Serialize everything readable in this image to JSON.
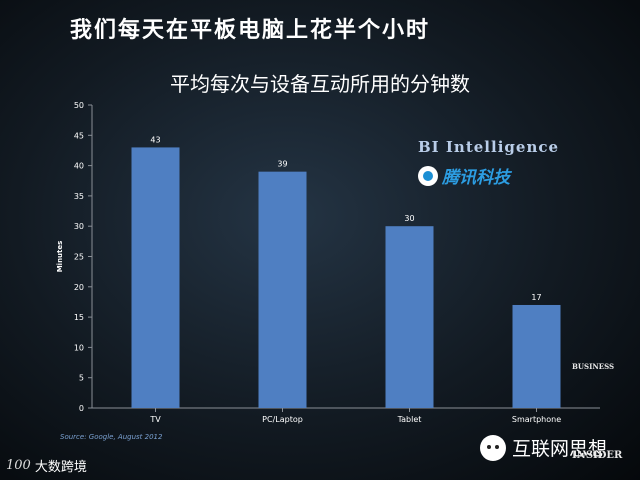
{
  "headline": "我们每天在平板电脑上花半个小时",
  "chart_data": {
    "type": "bar",
    "title": "平均每次与设备互动所用的分钟数",
    "ylabel": "Minutes",
    "xlabel": "",
    "categories": [
      "TV",
      "PC/Laptop",
      "Tablet",
      "Smartphone"
    ],
    "values": [
      43,
      39,
      30,
      17
    ],
    "ylim": [
      0,
      50
    ],
    "yticks": [
      0,
      5,
      10,
      15,
      20,
      25,
      30,
      35,
      40,
      45,
      50
    ],
    "grid": false,
    "bar_color": "#4f7fc2",
    "source": "Source: Google, August 2012"
  },
  "brands": {
    "bi_intelligence": "BI Intelligence",
    "tencent_tech": "腾讯科技",
    "business_insider_top": "BUSINESS",
    "business_insider_bottom": "INSIDER"
  },
  "footer": {
    "left_logo": "100",
    "left_text": "大数跨境",
    "right_text": "互联网思想"
  }
}
